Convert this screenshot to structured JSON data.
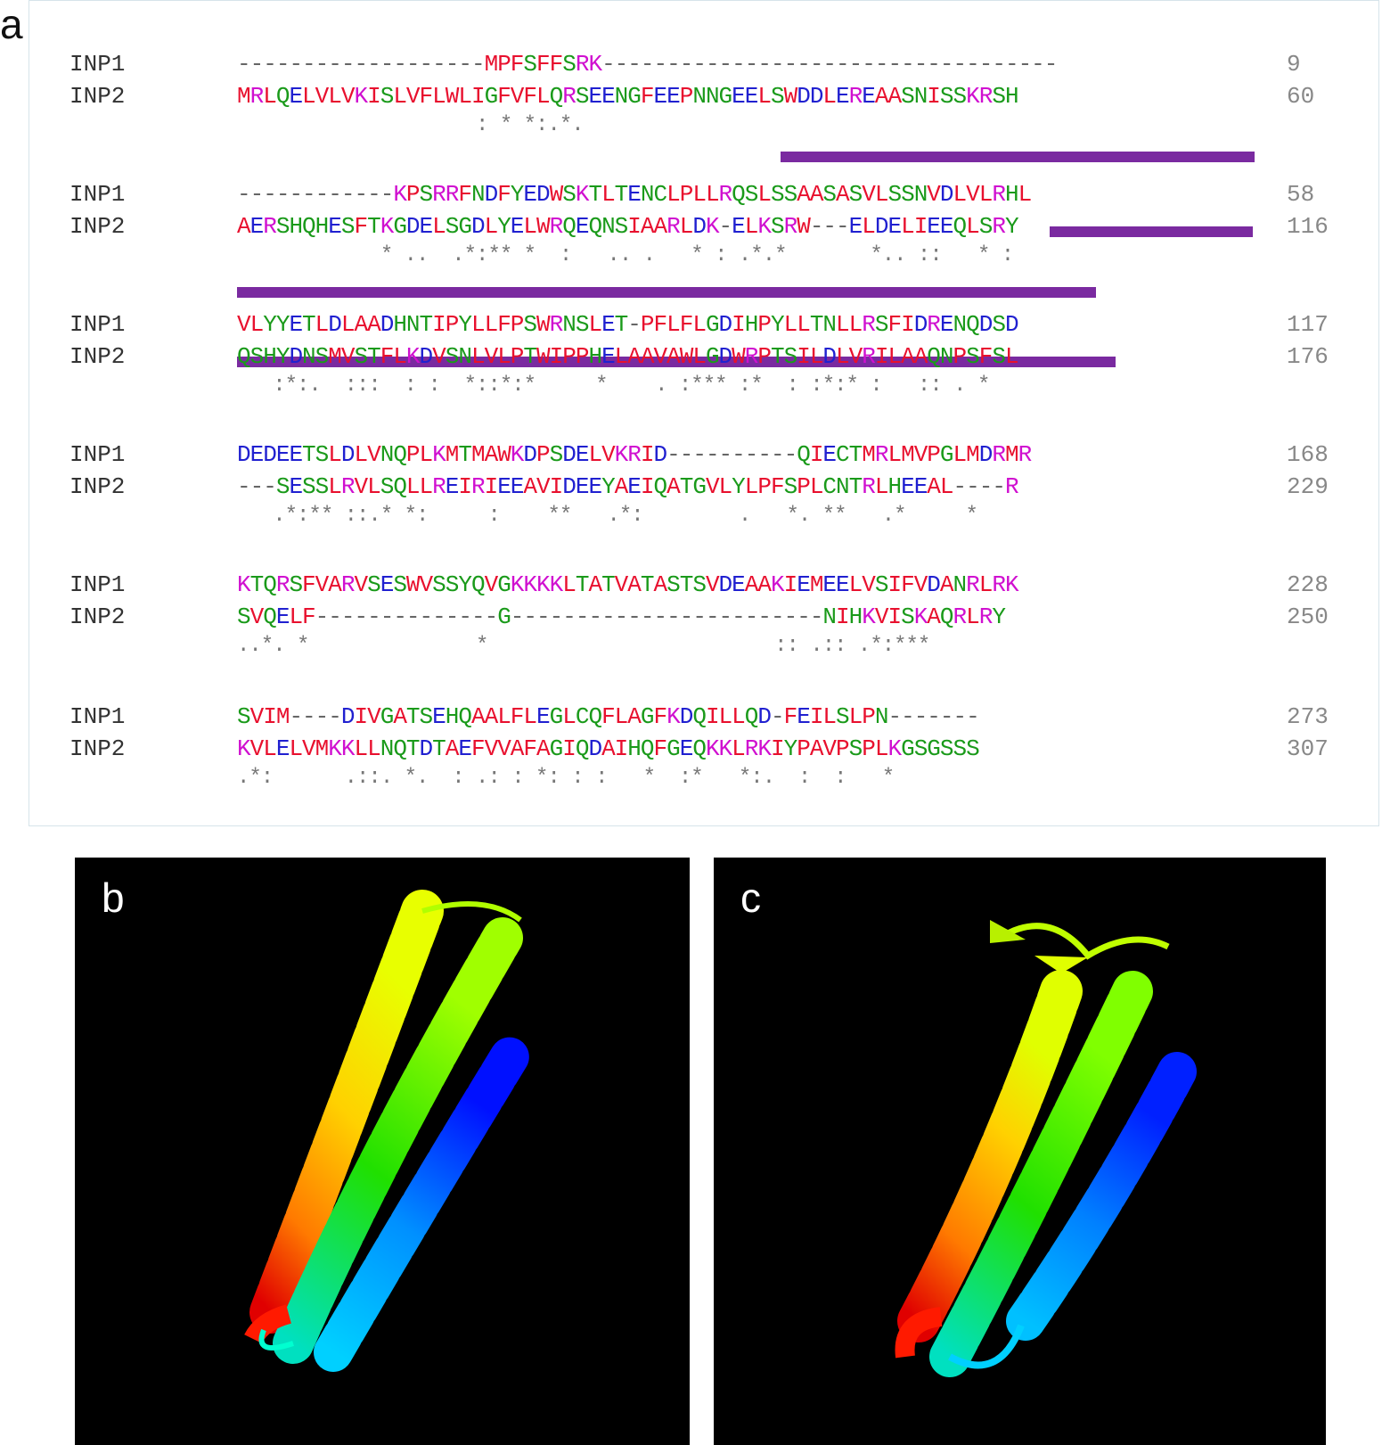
{
  "panels": {
    "a": "a",
    "b": "b",
    "c": "c"
  },
  "alignment": {
    "blocks": [
      {
        "row1": {
          "name": "INP1",
          "seq": "-------------------MPFSFFSRK-----------------------------------",
          "end": "9"
        },
        "row2": {
          "name": "INP2",
          "seq": "MRLQELVLVKISLVFLWLIGFVFLQRSEENGFEEPNNGEELSWDDLEREAASNISSKRSH",
          "end": "60"
        },
        "cons": "                    : * *:.*."
      },
      {
        "row1": {
          "name": "INP1",
          "seq": "------------KPSRRFNDFYEDWSKTLTENCLPLLRQSLSSAASASVLSSNVDLVLRHL",
          "end": "58"
        },
        "row2": {
          "name": "INP2",
          "seq": "AERSHQHESFTKGDELSGDLYELWRQEQNSIAARLDK-ELKSRW---ELDELIEEQLSRY",
          "end": "116"
        },
        "cons": "            * ..  .*:** *  :   .. .   * : .*.*       *.. ::   * :"
      },
      {
        "row1": {
          "name": "INP1",
          "seq": "VLYYETLDLAADHNTIPYLLFPSWRNSLET-PFLFLGDIHPYLLTNLLRSFIDRENQDSD",
          "end": "117"
        },
        "row2": {
          "name": "INP2",
          "seq": "QSHYDNSMVSTFLKDVSNLVLPTWIPPHELAAVAWLGDWRPTSILDLVRILAAQNPSFSL",
          "end": "176"
        },
        "cons": "   :*:.  :::  : :  *::*:*     *    . :*** :*  : :*:* :   :: . *"
      },
      {
        "row1": {
          "name": "INP1",
          "seq": "DEDEETSLDLVNQPLKMTMAWKDPSDELVKRID----------QIECTMRLMVPGLMDRMR",
          "end": "168"
        },
        "row2": {
          "name": "INP2",
          "seq": "---SESSLRVLSQLLREIRIEEAVIDEEYAEIQATGVLYLPFSPLCNTRLHEEAL----R",
          "end": "229"
        },
        "cons": "   .*:** ::.* *:     :    **   .*:        .   *. **   .*     *"
      },
      {
        "row1": {
          "name": "INP1",
          "seq": "KTQRSFVARVSESWVSSYQVGKKKKLTATVATASTSVDEAAKIEMEELVSIFVDANRLRK",
          "end": "228"
        },
        "row2": {
          "name": "INP2",
          "seq": "SVQELF--------------G------------------------NIHKVISKAQRLRY",
          "end": "250"
        },
        "cons": "..*. *              *                        :: .:: .*:***"
      },
      {
        "row1": {
          "name": "INP1",
          "seq": "SVIM----DIVGATSEHQAALFLEGLCQFLAGFKDQILLQD-FEILSLPN-------",
          "end": "273"
        },
        "row2": {
          "name": "INP2",
          "seq": "KVLELVMKKLLNQTDTAEFVVAFAGIQDAIHQFGEQKKLRKIYPAVPSPLKGSGSSS",
          "end": "307"
        },
        "cons": ".*:      .::. *.  : .: : *: : :   *  :*   *:.  :  :   *"
      }
    ]
  }
}
